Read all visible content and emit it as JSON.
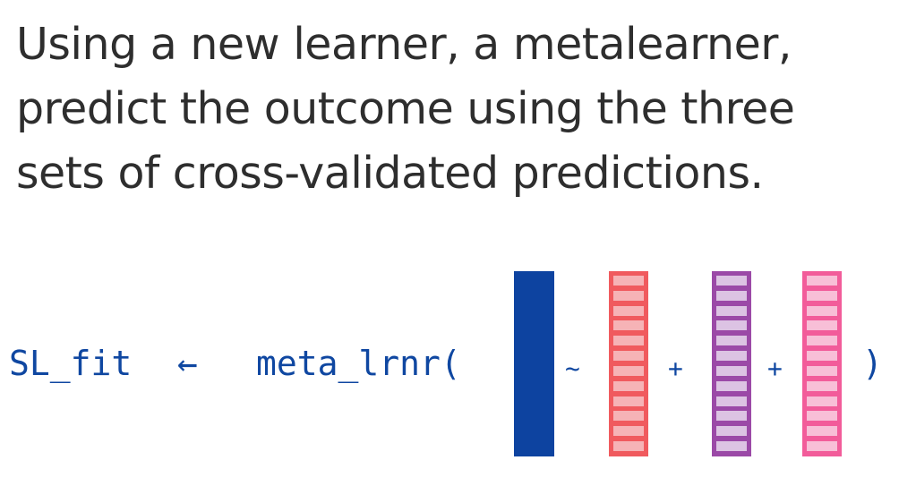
{
  "heading": {
    "line1": "Using a new learner, a metalearner,",
    "line2": "predict the outcome using the three",
    "line3": "sets of cross-validated predictions."
  },
  "formula": {
    "assign_target": "SL_fit",
    "arrow": "←",
    "function_name": "meta_lrnr(",
    "tilde": "~",
    "plus_1": "+",
    "plus_2": "+",
    "close_paren": ")"
  },
  "colors": {
    "outcome": "#0d43a0",
    "prediction_1_border": "#f05a5e",
    "prediction_1_fill": "#f6b3b6",
    "prediction_2_border": "#9b49a7",
    "prediction_2_fill": "#dcc3e3",
    "prediction_3_border": "#f25c9a",
    "prediction_3_fill": "#f8bfd7"
  },
  "prediction_columns": [
    {
      "name": "prediction-set-1",
      "cells": 12
    },
    {
      "name": "prediction-set-2",
      "cells": 12
    },
    {
      "name": "prediction-set-3",
      "cells": 12
    }
  ]
}
